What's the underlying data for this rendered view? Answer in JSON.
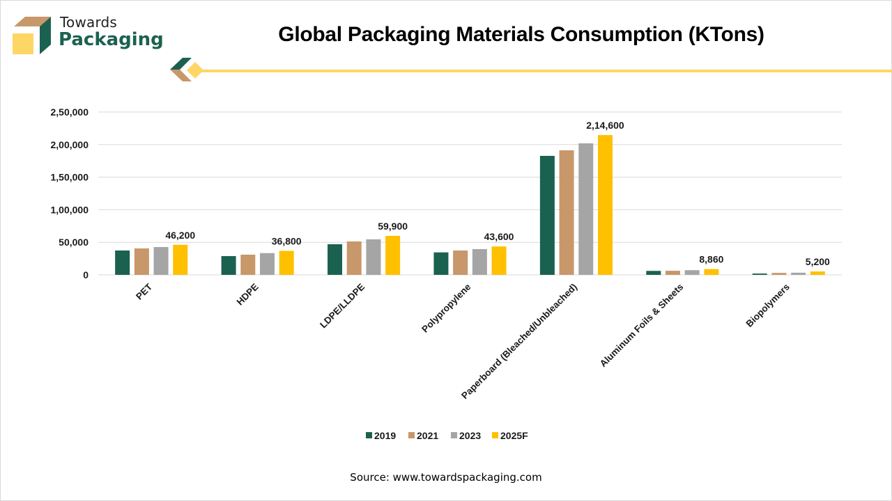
{
  "brand": {
    "name_top": "Towards",
    "name_bottom": "Packaging",
    "colors": {
      "green": "#1B6150",
      "tan": "#C8976A",
      "yellow": "#FDD666"
    }
  },
  "source": "Source: www.towardspackaging.com",
  "chart_data": {
    "type": "bar",
    "title": "Global Packaging Materials Consumption (KTons)",
    "xlabel": "",
    "ylabel": "",
    "ylim": [
      0,
      250000
    ],
    "yticks": [
      0,
      50000,
      100000,
      150000,
      200000,
      250000
    ],
    "ytick_labels": [
      "0",
      "50,000",
      "1,00,000",
      "1,50,000",
      "2,00,000",
      "2,50,000"
    ],
    "grid": true,
    "legend_position": "bottom",
    "categories": [
      "PET",
      "HDPE",
      "LDPE/LLDPE",
      "Polypropylene",
      "Paperboard (Bleached/Unbleached)",
      "Aluminum Foils & Sheets",
      "Biopolymers"
    ],
    "series": [
      {
        "name": "2019",
        "color": "#1B6150",
        "values": [
          37400,
          28800,
          47000,
          34500,
          182700,
          6100,
          2000
        ]
      },
      {
        "name": "2021",
        "color": "#C8976A",
        "values": [
          40600,
          31000,
          51300,
          37400,
          191200,
          6300,
          3000
        ]
      },
      {
        "name": "2023",
        "color": "#A5A5A5",
        "values": [
          42700,
          33400,
          54500,
          39500,
          201900,
          7200,
          3300
        ]
      },
      {
        "name": "2025F",
        "color": "#FFC000",
        "values": [
          46200,
          36800,
          59900,
          43600,
          214600,
          8860,
          5200
        ]
      }
    ],
    "data_labels": {
      "series": "2025F",
      "labels": [
        "46,200",
        "36,800",
        "59,900",
        "43,600",
        "2,14,600",
        "8,860",
        "5,200"
      ]
    }
  }
}
